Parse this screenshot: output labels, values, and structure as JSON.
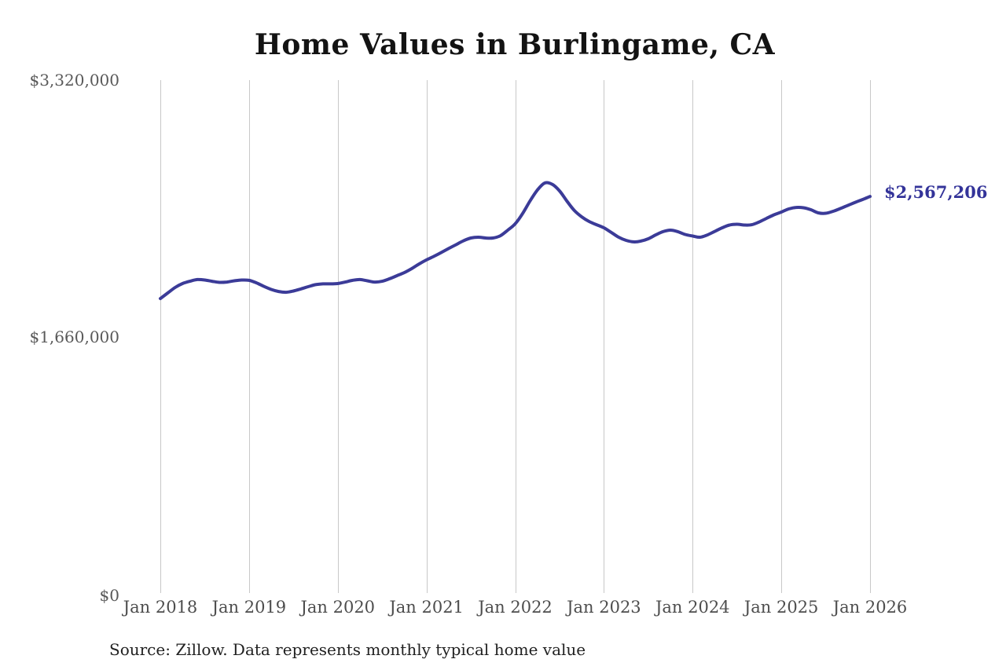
{
  "title": "Home Values in Burlingame, CA",
  "source_note": "Source: Zillow. Data represents monthly typical home value",
  "colors": {
    "line": "#3b3b98",
    "end_label": "#333399",
    "gridline": "#c8c8c8",
    "title": "#131313",
    "axis_text": "#4d4d4d"
  },
  "chart_data": {
    "type": "line",
    "title": "Home Values in Burlingame, CA",
    "xlabel": "",
    "ylabel": "",
    "unit": "USD",
    "grid": "vertical-only",
    "legend": false,
    "ylim": [
      0,
      3320000
    ],
    "y_axis_ticks": [
      {
        "label": "$3,320,000",
        "value": 3320000
      },
      {
        "label": "$1,660,000",
        "value": 1660000
      },
      {
        "label": "$0",
        "value": 0
      }
    ],
    "x_ticks": [
      "Jan 2018",
      "Jan 2019",
      "Jan 2020",
      "Jan 2021",
      "Jan 2022",
      "Jan 2023",
      "Jan 2024",
      "Jan 2025",
      "Jan 2026"
    ],
    "x_start_month": "2018-01",
    "x_end_month": "2026-01",
    "end_label": "$2,567,206",
    "end_value": 2567206,
    "series": [
      {
        "name": "Monthly typical home value",
        "color": "#3b3b98",
        "values": [
          1906000,
          1942000,
          1978000,
          2003000,
          2018000,
          2029000,
          2026000,
          2018000,
          2011000,
          2013000,
          2021000,
          2026000,
          2024000,
          2008000,
          1985000,
          1965000,
          1952000,
          1947000,
          1955000,
          1968000,
          1983000,
          1996000,
          2001000,
          2001000,
          2003000,
          2013000,
          2024000,
          2029000,
          2021000,
          2013000,
          2018000,
          2034000,
          2054000,
          2074000,
          2100000,
          2130000,
          2156000,
          2179000,
          2204000,
          2230000,
          2255000,
          2280000,
          2298000,
          2303000,
          2298000,
          2298000,
          2313000,
          2349000,
          2390000,
          2456000,
          2537000,
          2608000,
          2654000,
          2646000,
          2603000,
          2537000,
          2476000,
          2435000,
          2405000,
          2384000,
          2364000,
          2334000,
          2303000,
          2283000,
          2273000,
          2278000,
          2293000,
          2318000,
          2339000,
          2349000,
          2339000,
          2321000,
          2311000,
          2303000,
          2318000,
          2341000,
          2364000,
          2382000,
          2387000,
          2382000,
          2384000,
          2402000,
          2425000,
          2448000,
          2466000,
          2486000,
          2496000,
          2494000,
          2481000,
          2461000,
          2458000,
          2471000,
          2489000,
          2509000,
          2529000,
          2547000,
          2567206
        ]
      }
    ]
  }
}
